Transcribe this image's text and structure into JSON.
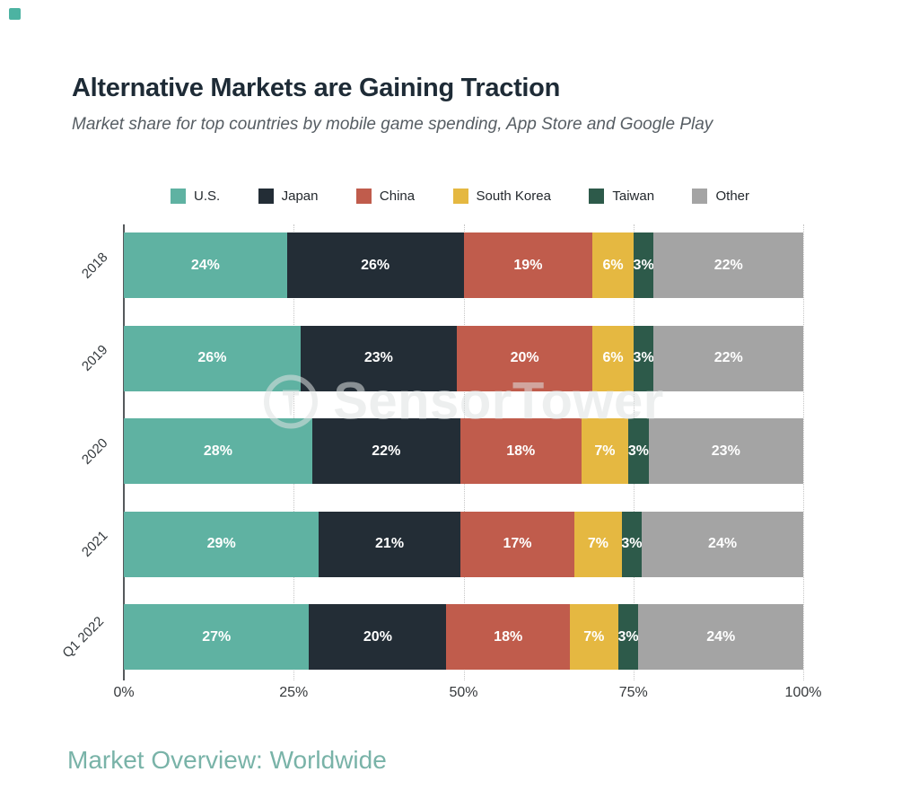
{
  "brand": {
    "corner_mark_color": "#4cb3a2"
  },
  "header": {
    "title": "Alternative Markets are Gaining Traction",
    "subtitle": "Market share for top countries by mobile game spending, App Store and Google Play"
  },
  "watermark": {
    "text": "SensorTower"
  },
  "footer": {
    "text": "Market Overview: Worldwide",
    "color": "#79b3a8"
  },
  "chart_data": {
    "type": "bar",
    "orientation": "horizontal",
    "stacked": true,
    "categories": [
      "2018",
      "2019",
      "2020",
      "2021",
      "Q1 2022"
    ],
    "series": [
      {
        "name": "U.S.",
        "color": "#5fb2a2",
        "values": [
          24,
          26,
          28,
          29,
          27
        ]
      },
      {
        "name": "Japan",
        "color": "#232d36",
        "values": [
          26,
          23,
          22,
          21,
          20
        ]
      },
      {
        "name": "China",
        "color": "#c05c4c",
        "values": [
          19,
          20,
          18,
          17,
          18
        ]
      },
      {
        "name": "South Korea",
        "color": "#e5b841",
        "values": [
          6,
          6,
          7,
          7,
          7
        ]
      },
      {
        "name": "Taiwan",
        "color": "#2d5a4a",
        "values": [
          3,
          3,
          3,
          3,
          3
        ]
      },
      {
        "name": "Other",
        "color": "#a4a4a4",
        "values": [
          22,
          22,
          23,
          24,
          24
        ]
      }
    ],
    "value_suffix": "%",
    "xlim": [
      0,
      100
    ],
    "x_ticks": [
      {
        "label": "0%",
        "position": 0
      },
      {
        "label": "25%",
        "position": 25
      },
      {
        "label": "50%",
        "position": 50
      },
      {
        "label": "75%",
        "position": 75
      },
      {
        "label": "100%",
        "position": 100
      }
    ],
    "gridlines": [
      25,
      50,
      75,
      100
    ],
    "grid_style": "dotted-vertical",
    "legend_position": "top",
    "bar_label_color": "#ffffff"
  }
}
